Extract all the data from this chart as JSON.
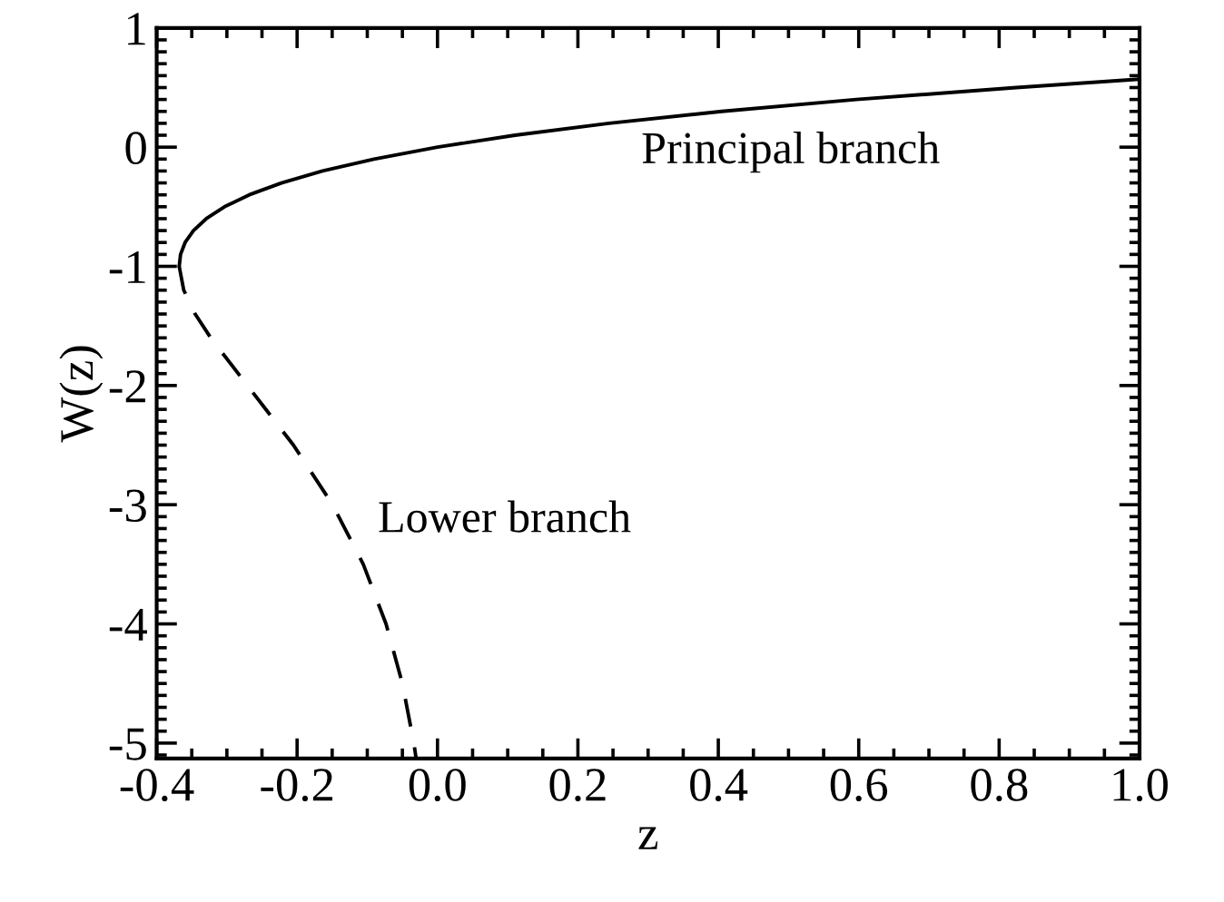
{
  "chart_data": {
    "type": "line",
    "xlabel": "z",
    "ylabel": "W(z)",
    "xlim": [
      -0.4,
      1.0
    ],
    "ylim": [
      -5.13,
      1
    ],
    "xticks": [
      {
        "value": -0.4,
        "label": "-0.4"
      },
      {
        "value": -0.2,
        "label": "-0.2"
      },
      {
        "value": 0,
        "label": "0.0"
      },
      {
        "value": 0.2,
        "label": "0.2"
      },
      {
        "value": 0.4,
        "label": "0.4"
      },
      {
        "value": 0.6,
        "label": "0.6"
      },
      {
        "value": 0.8,
        "label": "0.8"
      },
      {
        "value": 1.0,
        "label": "1.0"
      }
    ],
    "yticks": [
      {
        "value": -5,
        "label": "-5"
      },
      {
        "value": -4,
        "label": "-4"
      },
      {
        "value": -3,
        "label": "-3"
      },
      {
        "value": -2,
        "label": "-2"
      },
      {
        "value": -1,
        "label": "-1"
      },
      0,
      1
    ],
    "grid": false,
    "legend": false,
    "series": [
      {
        "color": "#000000",
        "line_style": "solid",
        "x": [
          -0.3679,
          -0.366,
          -0.3595,
          -0.3476,
          -0.3293,
          -0.3033,
          -0.2681,
          -0.2222,
          -0.1637,
          -0.0905,
          0,
          0.1105,
          0.2443,
          0.405,
          0.5967,
          0.8244,
          1.0
        ],
        "values": [
          -1,
          -0.9,
          -0.8,
          -0.7,
          -0.6,
          -0.5,
          -0.4,
          -0.3,
          -0.2,
          -0.1,
          0,
          0.1,
          0.2,
          0.3,
          0.4,
          0.5,
          0.57
        ]
      },
      {
        "color": "#000000",
        "line_style": "dashed",
        "x": [
          -0.3679,
          -0.3614,
          -0.3452,
          -0.323,
          -0.2707,
          -0.2052,
          -0.1494,
          -0.1057,
          -0.0733,
          -0.05,
          -0.0337,
          -0.0304
        ],
        "values": [
          -1,
          -1.2,
          -1.4,
          -1.6,
          -2,
          -2.5,
          -3,
          -3.5,
          -4,
          -4.5,
          -5,
          -5.13
        ]
      }
    ],
    "annotations": [
      "Principal branch",
      "Lower branch"
    ]
  }
}
